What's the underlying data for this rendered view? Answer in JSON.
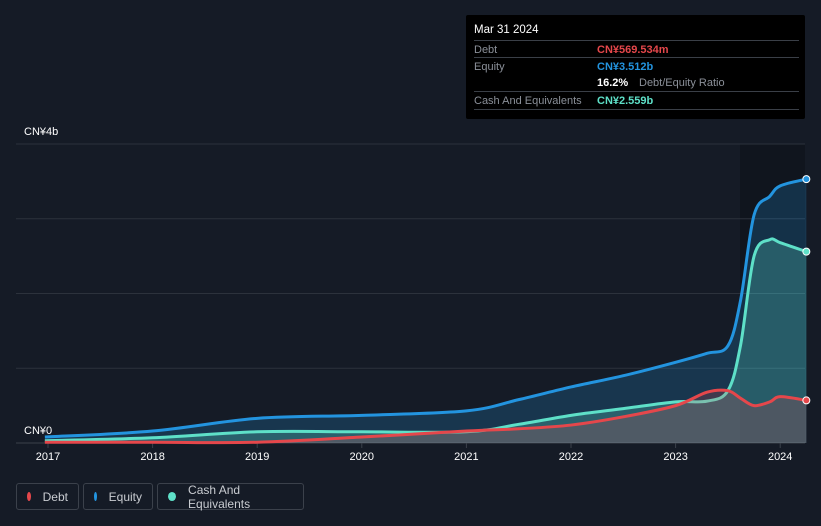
{
  "tooltip": {
    "date": "Mar 31 2024",
    "debt_label": "Debt",
    "debt_value": "CN¥569.534m",
    "equity_label": "Equity",
    "equity_value": "CN¥3.512b",
    "ratio_value": "16.2%",
    "ratio_label": "Debt/Equity Ratio",
    "cash_label": "Cash And Equivalents",
    "cash_value": "CN¥2.559b"
  },
  "legend": [
    {
      "label": "Debt",
      "color": "#e5474b"
    },
    {
      "label": "Equity",
      "color": "#2394df"
    },
    {
      "label": "Cash And Equivalents",
      "color": "#5ee0c8"
    }
  ],
  "chart_data": {
    "type": "area",
    "ylim": [
      0,
      4
    ],
    "yunit": "CN¥ billions",
    "ytick_labels": [
      "CN¥4b",
      "CN¥0"
    ],
    "xtick_labels": [
      "2017",
      "2018",
      "2019",
      "2020",
      "2021",
      "2022",
      "2023",
      "2024"
    ],
    "x": [
      2016.97,
      2018,
      2019,
      2020,
      2021,
      2021.5,
      2022,
      2022.5,
      2023,
      2023.3,
      2023.5,
      2023.62,
      2023.75,
      2023.9,
      2024,
      2024.25
    ],
    "series": [
      {
        "name": "Equity",
        "color": "#2394df",
        "values": [
          0.08,
          0.16,
          0.33,
          0.37,
          0.43,
          0.58,
          0.75,
          0.9,
          1.08,
          1.2,
          1.3,
          1.9,
          3.05,
          3.3,
          3.44,
          3.53
        ]
      },
      {
        "name": "Cash And Equivalents",
        "color": "#5ee0c8",
        "values": [
          0.03,
          0.07,
          0.15,
          0.15,
          0.15,
          0.25,
          0.37,
          0.46,
          0.55,
          0.56,
          0.7,
          1.3,
          2.5,
          2.72,
          2.68,
          2.56
        ]
      },
      {
        "name": "Debt",
        "color": "#e5474b",
        "values": [
          0.01,
          0.01,
          0.01,
          0.08,
          0.16,
          0.19,
          0.24,
          0.35,
          0.5,
          0.68,
          0.7,
          0.6,
          0.5,
          0.55,
          0.62,
          0.57
        ]
      }
    ]
  }
}
